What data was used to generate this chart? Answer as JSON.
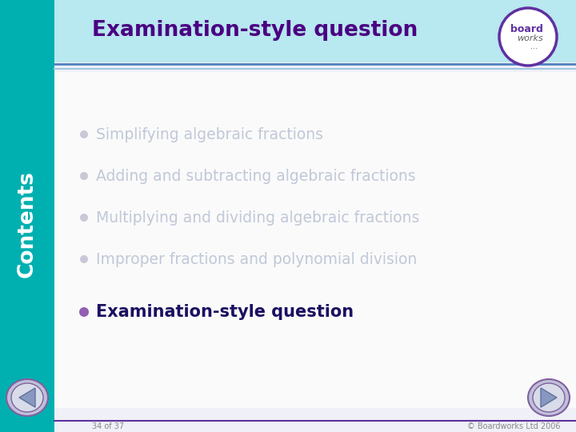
{
  "title": "Examination-style question",
  "title_color": "#4b0082",
  "title_bg_top": "#b8e8f0",
  "title_bg_bottom": "#d8f0f8",
  "title_stripe_color": "#5080c0",
  "left_bar_color": "#00b0b0",
  "bg_color": "#f0f0f8",
  "faded_items": [
    "Simplifying algebraic fractions",
    "Adding and subtracting algebraic fractions",
    "Multiplying and dividing algebraic fractions",
    "Improper fractions and polynomial division"
  ],
  "faded_color": "#c0c8d8",
  "faded_bullet_color": "#c8c8d8",
  "active_item": "Examination-style question",
  "active_color": "#1a1060",
  "active_bullet_color": "#9060b0",
  "footer_left": "34 of 37",
  "footer_right": "© Boardworks Ltd 2006",
  "footer_color": "#888888",
  "footer_line_color": "#6030a0",
  "contents_text_color": "#ffffff",
  "logo_border_color": "#6030a0",
  "logo_text_bold": "board",
  "logo_text_regular": "works",
  "logo_dots": "...",
  "nav_btn_outer": "#c0c0d8",
  "nav_btn_inner": "#a0a8c0",
  "nav_btn_border": "#8060a0"
}
